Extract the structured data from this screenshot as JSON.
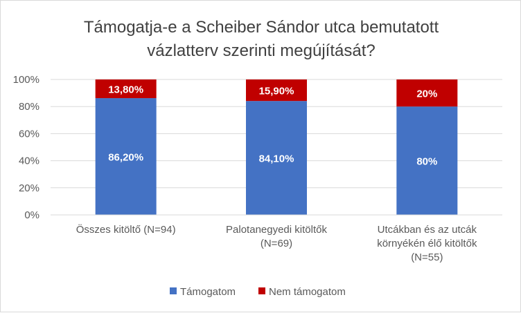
{
  "chart_data": {
    "type": "bar",
    "stacked": true,
    "title_lines": [
      "Támogatja-e a Scheiber Sándor utca bemutatott",
      "vázlatterv szerinti megújítását?"
    ],
    "categories": [
      [
        "Összes kitöltő (N=94)"
      ],
      [
        "Palotanegyedi kitöltők",
        "(N=69)"
      ],
      [
        "Utcákban és az utcák",
        "környékén élő kitöltők",
        "(N=55)"
      ]
    ],
    "series": [
      {
        "name": "Támogatom",
        "color": "#4472c4",
        "values": [
          86.2,
          84.1,
          80
        ],
        "labels": [
          "86,20%",
          "84,10%",
          "80%"
        ]
      },
      {
        "name": "Nem támogatom",
        "color": "#c00000",
        "values": [
          13.8,
          15.9,
          20
        ],
        "labels": [
          "13,80%",
          "15,90%",
          "20%"
        ]
      }
    ],
    "ylim": [
      0,
      100
    ],
    "yticks": [
      0,
      20,
      40,
      60,
      80,
      100
    ],
    "ytick_labels": [
      "0%",
      "20%",
      "40%",
      "60%",
      "80%",
      "100%"
    ],
    "grid": true,
    "legend_position": "bottom"
  }
}
